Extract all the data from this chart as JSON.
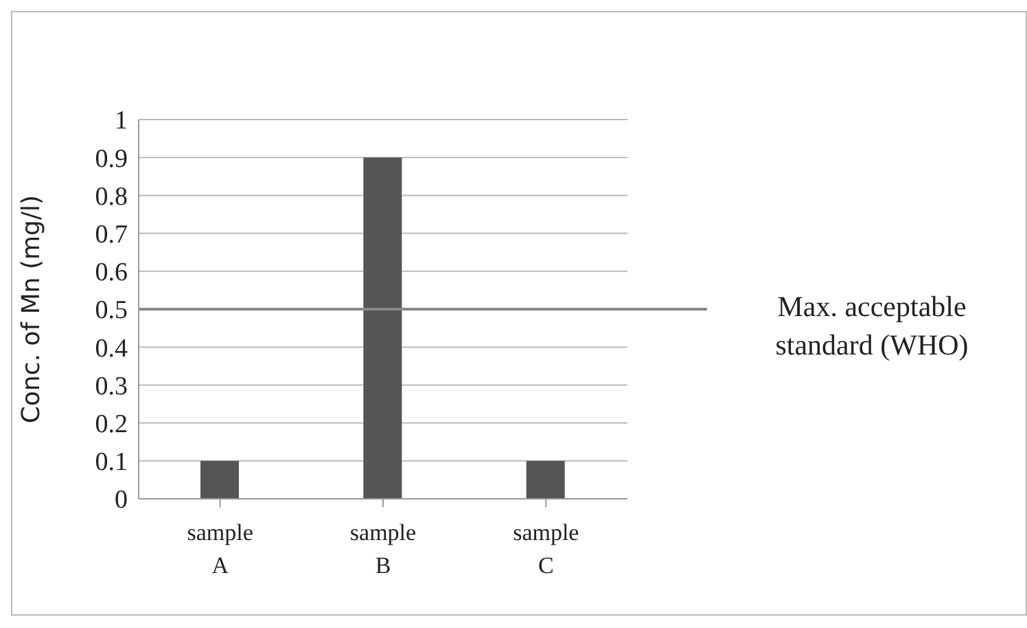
{
  "chart_data": {
    "type": "bar",
    "categories": [
      "sample A",
      "sample B",
      "sample C"
    ],
    "values": [
      0.1,
      0.9,
      0.1
    ],
    "color": "#555555",
    "ylabel": "Conc. of Mn (mg/l)",
    "ylim": [
      0,
      1
    ],
    "yticks": [
      0,
      0.1,
      0.2,
      0.3,
      0.4,
      0.5,
      0.6,
      0.7,
      0.8,
      0.9,
      1
    ],
    "grid": "y",
    "ref_lines": [
      {
        "axis": "y",
        "value": 0.5,
        "label": "Max. acceptable standard (WHO)",
        "color": "#888888"
      }
    ]
  }
}
